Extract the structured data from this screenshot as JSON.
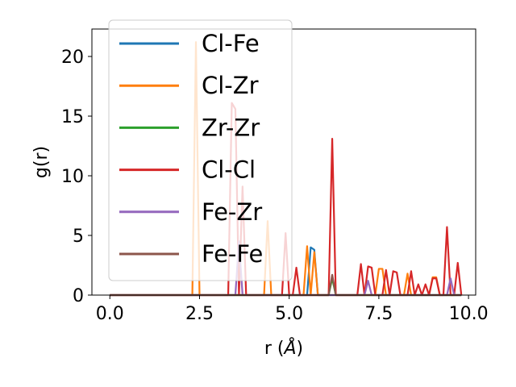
{
  "chart_data": {
    "type": "line",
    "title": "",
    "xlabel_text": "r (",
    "xlabel_unit": "Å",
    "xlabel_close": ")",
    "ylabel": "g(r)",
    "xlim": [
      -0.5,
      10.2
    ],
    "ylim": [
      0,
      22.3
    ],
    "xticks": [
      0.0,
      2.5,
      5.0,
      7.5,
      10.0
    ],
    "xtick_labels": [
      "0.0",
      "2.5",
      "5.0",
      "7.5",
      "10.0"
    ],
    "yticks": [
      0,
      5,
      10,
      15,
      20
    ],
    "ytick_labels": [
      "0",
      "5",
      "10",
      "15",
      "20"
    ],
    "grid": false,
    "legend_placement": "upper-left",
    "series": [
      {
        "name": "Cl-Fe",
        "color": "#1f77b4",
        "points": [
          [
            0,
            0
          ],
          [
            5.5,
            0
          ],
          [
            5.6,
            4.0
          ],
          [
            5.7,
            3.8
          ],
          [
            5.8,
            0
          ],
          [
            9.8,
            0
          ]
        ]
      },
      {
        "name": "Cl-Zr",
        "color": "#ff7f0e",
        "points": [
          [
            0,
            0
          ],
          [
            2.3,
            0
          ],
          [
            2.4,
            21.2
          ],
          [
            2.5,
            0
          ],
          [
            4.3,
            0
          ],
          [
            4.4,
            6.2
          ],
          [
            4.5,
            0
          ],
          [
            5.4,
            0
          ],
          [
            5.5,
            4.1
          ],
          [
            5.6,
            0
          ],
          [
            5.7,
            3.6
          ],
          [
            5.8,
            0
          ],
          [
            7.4,
            0
          ],
          [
            7.5,
            2.2
          ],
          [
            7.6,
            2.2
          ],
          [
            7.7,
            0
          ],
          [
            8.2,
            0
          ],
          [
            8.3,
            1.8
          ],
          [
            8.4,
            0
          ],
          [
            8.9,
            0
          ],
          [
            9.0,
            1.5
          ],
          [
            9.1,
            1.5
          ],
          [
            9.2,
            0
          ],
          [
            9.8,
            0
          ]
        ]
      },
      {
        "name": "Zr-Zr",
        "color": "#2ca02c",
        "points": [
          [
            0,
            0
          ],
          [
            6.1,
            0
          ],
          [
            6.2,
            1.4
          ],
          [
            6.3,
            0
          ],
          [
            9.8,
            0
          ]
        ]
      },
      {
        "name": "Cl-Cl",
        "color": "#d62728",
        "points": [
          [
            0,
            0
          ],
          [
            3.3,
            0
          ],
          [
            3.4,
            16.1
          ],
          [
            3.5,
            15.6
          ],
          [
            3.6,
            0
          ],
          [
            3.7,
            9.1
          ],
          [
            3.8,
            0
          ],
          [
            4.8,
            0
          ],
          [
            4.9,
            5.2
          ],
          [
            5.0,
            0
          ],
          [
            5.1,
            0
          ],
          [
            5.2,
            2.3
          ],
          [
            5.3,
            0
          ],
          [
            6.1,
            0
          ],
          [
            6.2,
            13.1
          ],
          [
            6.3,
            0
          ],
          [
            6.9,
            0
          ],
          [
            7.0,
            2.6
          ],
          [
            7.1,
            0
          ],
          [
            7.2,
            2.4
          ],
          [
            7.3,
            2.3
          ],
          [
            7.4,
            0
          ],
          [
            7.6,
            0
          ],
          [
            7.7,
            2.1
          ],
          [
            7.8,
            0
          ],
          [
            7.9,
            2.0
          ],
          [
            8.0,
            1.9
          ],
          [
            8.1,
            0
          ],
          [
            8.3,
            0
          ],
          [
            8.4,
            2.0
          ],
          [
            8.5,
            0
          ],
          [
            8.6,
            0.9
          ],
          [
            8.7,
            0
          ],
          [
            8.8,
            0.9
          ],
          [
            8.9,
            0
          ],
          [
            9.0,
            1.4
          ],
          [
            9.1,
            1.4
          ],
          [
            9.2,
            0
          ],
          [
            9.3,
            0
          ],
          [
            9.4,
            5.7
          ],
          [
            9.5,
            0
          ],
          [
            9.6,
            0
          ],
          [
            9.7,
            2.7
          ],
          [
            9.8,
            0
          ]
        ]
      },
      {
        "name": "Fe-Zr",
        "color": "#9467bd",
        "points": [
          [
            0,
            0
          ],
          [
            3.5,
            0
          ],
          [
            3.6,
            4.5
          ],
          [
            3.7,
            0
          ],
          [
            7.1,
            0
          ],
          [
            7.2,
            1.2
          ],
          [
            7.3,
            0
          ],
          [
            9.4,
            0
          ],
          [
            9.5,
            1.4
          ],
          [
            9.6,
            0
          ],
          [
            9.8,
            0
          ]
        ]
      },
      {
        "name": "Fe-Fe",
        "color": "#8c564b",
        "points": [
          [
            0,
            0
          ],
          [
            6.1,
            0
          ],
          [
            6.2,
            1.7
          ],
          [
            6.3,
            0
          ],
          [
            9.8,
            0
          ]
        ]
      }
    ]
  }
}
